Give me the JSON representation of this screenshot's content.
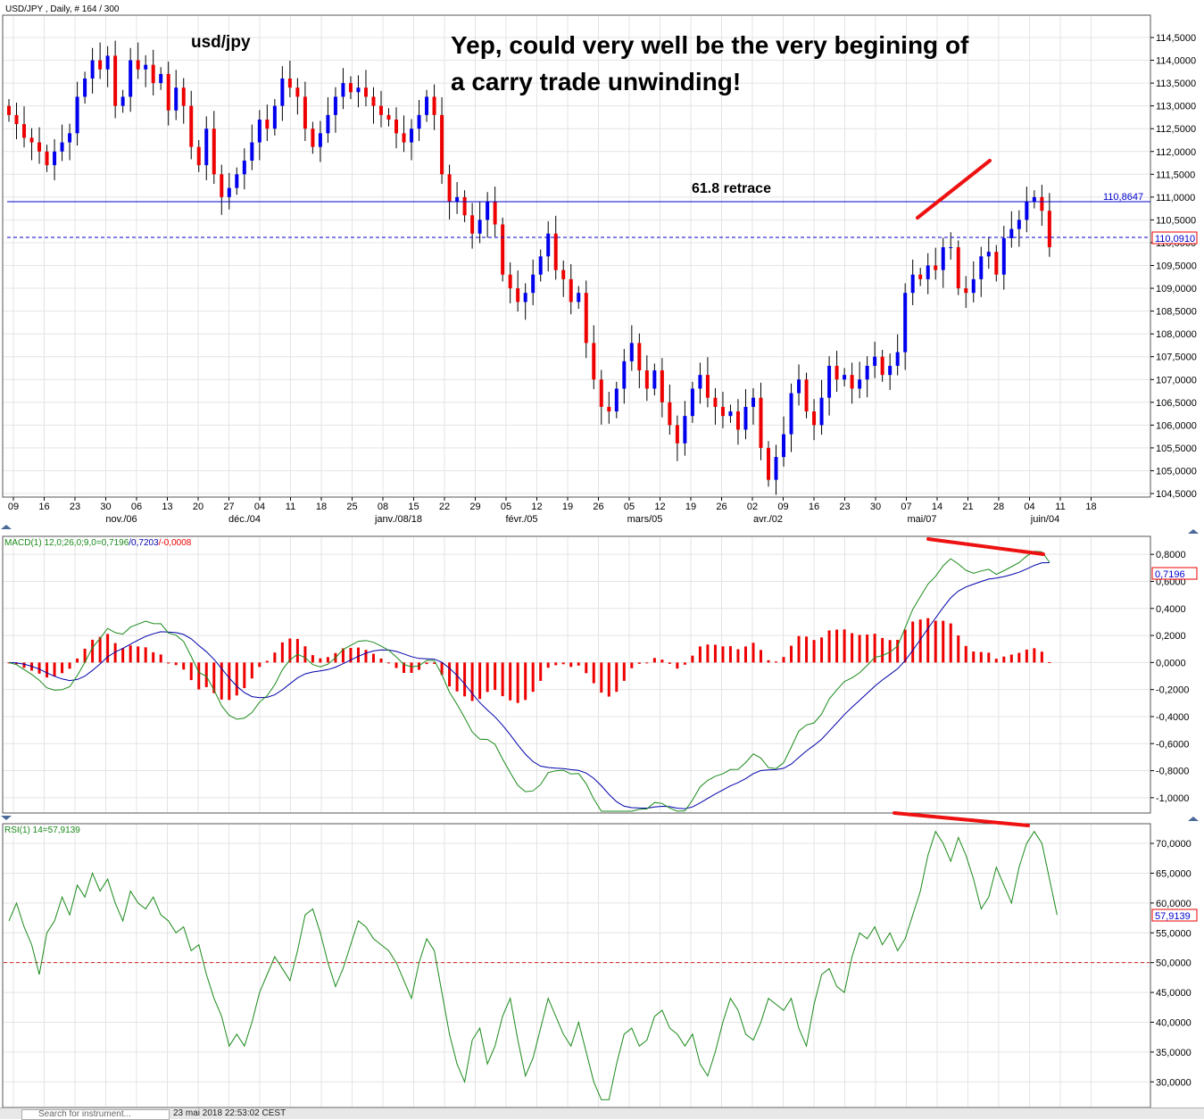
{
  "price_panel": {
    "header": "USD/JPY  , Daily, # 164 / 300",
    "chart_title": "usd/jpy",
    "annotation_line1": "Yep, could very well be the very begining of",
    "annotation_line2": "a carry trade unwinding!",
    "retrace_label": "61.8 retrace",
    "level_solid": "110,8647",
    "level_dashed": "110,0910"
  },
  "macd_panel": {
    "header_prefix": "MACD(1) 12,0;26,0;9,0=",
    "macd_value": "0,7196",
    "signal_value": "/0,7203",
    "hist_value": "/-0,0008",
    "last_value_box": "0,7196"
  },
  "rsi_panel": {
    "header": "RSI(1) 14=57,9139",
    "last_value_box": "57,9139"
  },
  "status_bar": {
    "search_placeholder": "Search for instrument...",
    "timestamp": "23 mai 2018 22:53:02 CEST"
  },
  "colors": {
    "bull": "#0000ee",
    "bear": "#ee0000",
    "macd_line": "#1a8a1a",
    "signal_line": "#0000aa",
    "rsi_line": "#1a8a1a",
    "annotation_red": "#ee1111",
    "grid": "#e4e4e4"
  },
  "chart_data": [
    {
      "type": "candlestick",
      "title": "USD/JPY Daily",
      "y_ticks": [
        104.5,
        105,
        105.5,
        106,
        106.5,
        107,
        107.5,
        108,
        108.5,
        109,
        109.5,
        110,
        110.5,
        111,
        111.5,
        112,
        112.5,
        113,
        113.5,
        114,
        114.5
      ],
      "y_tick_labels": [
        "104,5000",
        "105,0000",
        "105,5000",
        "106,0000",
        "106,5000",
        "107,0000",
        "107,5000",
        "108,0000",
        "108,5000",
        "109,0000",
        "109,5000",
        "110,0000",
        "110,5000",
        "111,0000",
        "111,5000",
        "112,0000",
        "112,5000",
        "113,0000",
        "113,5000",
        "114,0000",
        "114,5000"
      ],
      "ylim": [
        104.5,
        114.5
      ],
      "x_day_labels": [
        "09",
        "16",
        "23",
        "30",
        "06",
        "13",
        "20",
        "27",
        "04",
        "11",
        "18",
        "25",
        "08",
        "15",
        "22",
        "29",
        "05",
        "12",
        "19",
        "26",
        "05",
        "12",
        "19",
        "26",
        "02",
        "09",
        "16",
        "23",
        "30",
        "07",
        "14",
        "21",
        "28",
        "04",
        "11",
        "18"
      ],
      "x_month_labels": [
        "nov./06",
        "déc./04",
        "janv./08/18",
        "févr./05",
        "mars/05",
        "avr./02",
        "mai/07",
        "juin/04"
      ],
      "closes": [
        112.8,
        112.6,
        112.3,
        112.2,
        112.0,
        111.7,
        112.0,
        112.2,
        112.4,
        113.2,
        113.6,
        114.0,
        113.8,
        114.1,
        113.0,
        113.2,
        114.0,
        113.8,
        113.9,
        113.5,
        113.7,
        112.9,
        113.4,
        113.0,
        112.1,
        111.7,
        112.5,
        111.5,
        111.0,
        111.2,
        111.5,
        111.8,
        112.2,
        112.7,
        112.5,
        113.0,
        113.6,
        113.4,
        113.2,
        112.5,
        112.1,
        112.4,
        112.8,
        113.2,
        113.5,
        113.3,
        113.4,
        113.2,
        113.0,
        112.8,
        112.7,
        112.4,
        112.2,
        112.5,
        112.8,
        113.2,
        112.8,
        111.5,
        110.9,
        111.0,
        110.6,
        110.2,
        110.5,
        110.9,
        110.4,
        109.3,
        109.0,
        108.7,
        108.9,
        109.3,
        109.7,
        110.2,
        109.4,
        109.2,
        108.7,
        108.9,
        107.8,
        107.0,
        106.4,
        106.3,
        106.8,
        107.4,
        107.8,
        107.2,
        106.8,
        107.2,
        106.5,
        106.0,
        105.6,
        106.2,
        106.8,
        107.1,
        106.6,
        106.4,
        106.2,
        106.3,
        105.9,
        106.4,
        106.6,
        105.5,
        104.8,
        105.3,
        105.8,
        106.7,
        107.0,
        106.3,
        106.0,
        106.6,
        107.3,
        107.0,
        107.1,
        106.8,
        107.0,
        107.3,
        107.5,
        107.1,
        107.3,
        107.6,
        108.9,
        109.3,
        109.2,
        109.5,
        109.4,
        109.9,
        109.9,
        109.0,
        108.9,
        109.2,
        109.7,
        109.8,
        109.3,
        110.1,
        110.3,
        110.5,
        110.9,
        111.0,
        110.7,
        109.9
      ]
    },
    {
      "type": "bar+line",
      "title": "MACD(1) 12,0;26,0;9,0",
      "y_ticks": [
        -1.0,
        -0.8,
        -0.6,
        -0.4,
        -0.2,
        0.0,
        0.2,
        0.4,
        0.6,
        0.8
      ],
      "y_tick_labels": [
        "-1,0000",
        "-0,8000",
        "-0,6000",
        "-0,4000",
        "-0,2000",
        "0,0000",
        "0,2000",
        "0,4000",
        "0,6000",
        "0,8000"
      ],
      "ylim": [
        -1.1,
        0.92
      ],
      "macd_last": 0.7196,
      "signal_last": 0.7203,
      "histogram_last": -0.0008
    },
    {
      "type": "line",
      "title": "RSI(1) 14",
      "y_ticks": [
        30,
        35,
        40,
        45,
        50,
        55,
        60,
        65,
        70
      ],
      "y_tick_labels": [
        "30,0000",
        "35,0000",
        "40,0000",
        "45,0000",
        "50,0000",
        "55,0000",
        "60,0000",
        "65,0000",
        "70,0000"
      ],
      "ylim": [
        26,
        73
      ],
      "reference_level": 50,
      "values": [
        57,
        60,
        56,
        53,
        48,
        55,
        57,
        61,
        58,
        63,
        61,
        65,
        62,
        64,
        60,
        57,
        62,
        60,
        59,
        61,
        58,
        57,
        55,
        56,
        52,
        53,
        48,
        44,
        41,
        36,
        38,
        36,
        40,
        45,
        48,
        51,
        49,
        47,
        52,
        58,
        59,
        55,
        50,
        46,
        49,
        53,
        57,
        56,
        54,
        53,
        52,
        50,
        47,
        44,
        50,
        54,
        52,
        45,
        38,
        33,
        30,
        37,
        39,
        33,
        36,
        41,
        44,
        37,
        31,
        34,
        39,
        44,
        41,
        38,
        36,
        40,
        35,
        30,
        27,
        27,
        33,
        38,
        39,
        36,
        37,
        41,
        42,
        39,
        38,
        36,
        38,
        33,
        31,
        35,
        40,
        44,
        42,
        38,
        37,
        40,
        44,
        43,
        42,
        44,
        39,
        36,
        43,
        48,
        49,
        46,
        45,
        51,
        55,
        54,
        56,
        53,
        55,
        52,
        54,
        58,
        62,
        68,
        72,
        70,
        67,
        71,
        68,
        64,
        59,
        61,
        66,
        63,
        60,
        66,
        70,
        72,
        70,
        64,
        58
      ]
    }
  ]
}
